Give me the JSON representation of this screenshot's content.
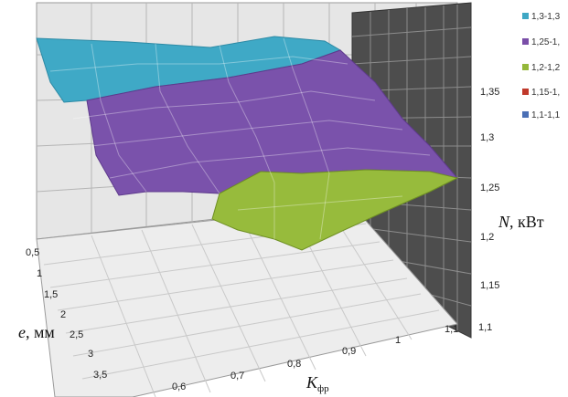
{
  "chart_data": {
    "type": "surface",
    "x_axis": {
      "label": "K",
      "label_subscript": "фр",
      "ticks": [
        "0,6",
        "0,7",
        "0,8",
        "0,9",
        "1",
        "1,1"
      ]
    },
    "y_axis": {
      "label": "e",
      "unit": ", мм",
      "ticks": [
        "0,5",
        "1",
        "1,5",
        "2",
        "2,5",
        "3",
        "3,5"
      ]
    },
    "z_axis": {
      "label": "N",
      "unit": ", кВт",
      "ticks": [
        "1,1",
        "1,15",
        "1,2",
        "1,25",
        "1,3",
        "1,35"
      ],
      "range": [
        1.1,
        1.35
      ]
    },
    "legend": {
      "placement": "top-right",
      "entries": [
        {
          "label": "1,3-1,3",
          "color": "#3ea7c4"
        },
        {
          "label": "1,25-1,",
          "color": "#7a4ea8"
        },
        {
          "label": "1,2-1,2",
          "color": "#94b83a"
        },
        {
          "label": "1,15-1,",
          "color": "#c0392b"
        },
        {
          "label": "1,1-1,1",
          "color": "#4a6fb5"
        }
      ]
    },
    "grid": true
  }
}
